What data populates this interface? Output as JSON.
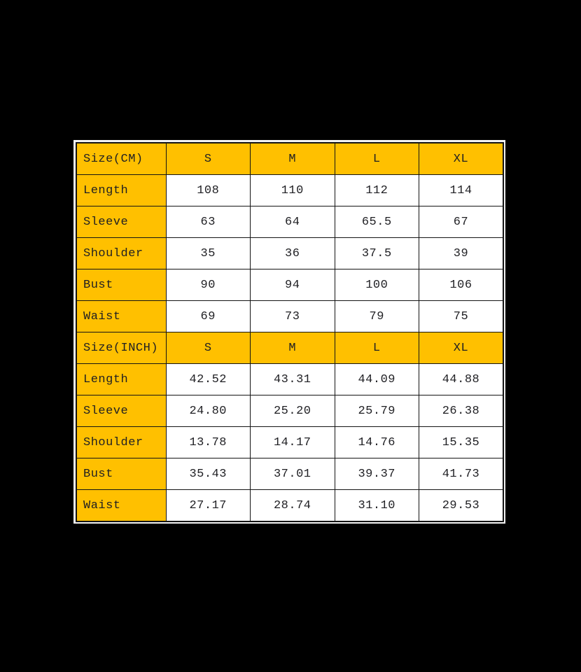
{
  "page": {
    "background_color": "#000000"
  },
  "table": {
    "accent_color": "#FFC000",
    "border_color": "#141414",
    "text_color": "#1f1f23"
  },
  "chart_data": {
    "type": "table",
    "sections": [
      {
        "header_label": "Size(CM)",
        "columns": [
          "S",
          "M",
          "L",
          "XL"
        ],
        "rows": [
          {
            "label": "Length",
            "values": [
              "108",
              "110",
              "112",
              "114"
            ]
          },
          {
            "label": "Sleeve",
            "values": [
              "63",
              "64",
              "65.5",
              "67"
            ]
          },
          {
            "label": "Shoulder",
            "values": [
              "35",
              "36",
              "37.5",
              "39"
            ]
          },
          {
            "label": "Bust",
            "values": [
              "90",
              "94",
              "100",
              "106"
            ]
          },
          {
            "label": "Waist",
            "values": [
              "69",
              "73",
              "79",
              "75"
            ]
          }
        ]
      },
      {
        "header_label": "Size(INCH)",
        "columns": [
          "S",
          "M",
          "L",
          "XL"
        ],
        "rows": [
          {
            "label": "Length",
            "values": [
              "42.52",
              "43.31",
              "44.09",
              "44.88"
            ]
          },
          {
            "label": "Sleeve",
            "values": [
              "24.80",
              "25.20",
              "25.79",
              "26.38"
            ]
          },
          {
            "label": "Shoulder",
            "values": [
              "13.78",
              "14.17",
              "14.76",
              "15.35"
            ]
          },
          {
            "label": "Bust",
            "values": [
              "35.43",
              "37.01",
              "39.37",
              "41.73"
            ]
          },
          {
            "label": "Waist",
            "values": [
              "27.17",
              "28.74",
              "31.10",
              "29.53"
            ]
          }
        ]
      }
    ]
  }
}
